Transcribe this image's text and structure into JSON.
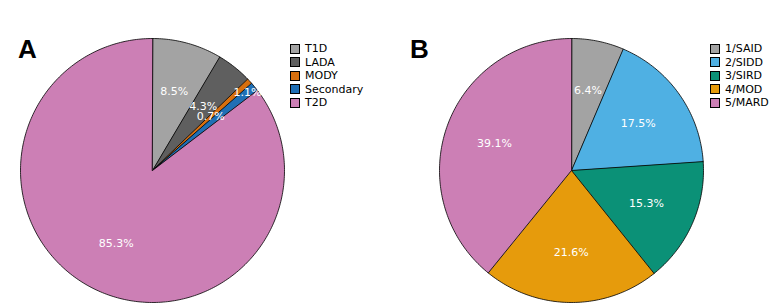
{
  "chart_data": [
    {
      "type": "pie",
      "title": "A",
      "categories": [
        "T1D",
        "LADA",
        "MODY",
        "Secondary",
        "T2D"
      ],
      "values": [
        8.5,
        4.3,
        0.7,
        1.1,
        85.3
      ],
      "value_labels": [
        "8.5%",
        "4.3%",
        "0.7%",
        "1.1%",
        "85.3%"
      ],
      "colors": [
        "#a3a3a3",
        "#5f5f5f",
        "#d86f0e",
        "#1f6fb5",
        "#cc7fb5"
      ],
      "data_labels": true,
      "legend": "top-right"
    },
    {
      "type": "pie",
      "title": "B",
      "categories": [
        "1/SAID",
        "2/SIDD",
        "3/SIRD",
        "4/MOD",
        "5/MARD"
      ],
      "values": [
        6.4,
        17.5,
        15.3,
        21.6,
        39.1
      ],
      "value_labels": [
        "6.4%",
        "17.5%",
        "15.3%",
        "21.6%",
        "39.1%"
      ],
      "colors": [
        "#a3a3a3",
        "#4fb0e3",
        "#0b9177",
        "#e69b0c",
        "#cc7fb5"
      ],
      "data_labels": true,
      "legend": "top-right"
    }
  ]
}
